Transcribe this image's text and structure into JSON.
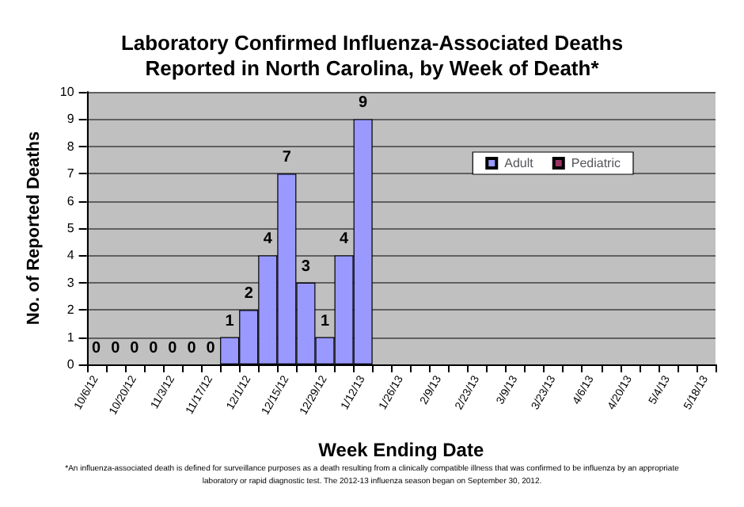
{
  "chart_data": {
    "type": "bar",
    "title": "Laboratory Confirmed Influenza-Associated Deaths\nReported in North Carolina, by Week of Death*",
    "xlabel": "Week Ending Date",
    "ylabel": "No. of Reported Deaths",
    "categories": [
      "10/6/12",
      null,
      "10/20/12",
      null,
      "11/3/12",
      null,
      "11/17/12",
      null,
      "12/1/12",
      null,
      "12/15/12",
      null,
      "12/29/12",
      null,
      "1/12/13",
      null,
      "1/26/13",
      null,
      "2/9/13",
      null,
      "2/23/13",
      null,
      "3/9/13",
      null,
      "3/23/13",
      null,
      "4/6/13",
      null,
      "4/20/13",
      null,
      "5/4/13",
      null,
      "5/18/13"
    ],
    "series": [
      {
        "name": "Adult",
        "color": "#9999ff",
        "values": [
          0,
          0,
          0,
          0,
          0,
          0,
          0,
          1,
          2,
          4,
          7,
          3,
          1,
          4,
          9,
          null,
          null,
          null,
          null,
          null,
          null,
          null,
          null,
          null,
          null,
          null,
          null,
          null,
          null,
          null,
          null,
          null,
          null
        ],
        "value_labels": [
          "0",
          "0",
          "0",
          "0",
          "0",
          "0",
          "0",
          "1",
          "2",
          "4",
          "7",
          "3",
          "1",
          "4",
          "9",
          null,
          null,
          null,
          null,
          null,
          null,
          null,
          null,
          null,
          null,
          null,
          null,
          null,
          null,
          null,
          null,
          null,
          null
        ]
      },
      {
        "name": "Pediatric",
        "color": "#993366",
        "values": [
          null,
          null,
          null,
          null,
          null,
          null,
          null,
          null,
          null,
          null,
          null,
          null,
          null,
          null,
          null,
          null,
          null,
          null,
          null,
          null,
          null,
          null,
          null,
          null,
          null,
          null,
          null,
          null,
          null,
          null,
          null,
          null,
          null
        ]
      }
    ],
    "stacked": true,
    "ylim": [
      0,
      10
    ],
    "yticks": [
      0,
      1,
      2,
      3,
      4,
      5,
      6,
      7,
      8,
      9,
      10
    ],
    "grid": "y",
    "legend": "top right",
    "annotations": [
      "*An influenza-associated death is defined for surveillance purposes as a death resulting from a clinically compatible illness that was confirmed to be influenza by an appropriate\nlaboratory or rapid diagnostic test. The 2012-13 influenza season began on September 30, 2012."
    ]
  }
}
